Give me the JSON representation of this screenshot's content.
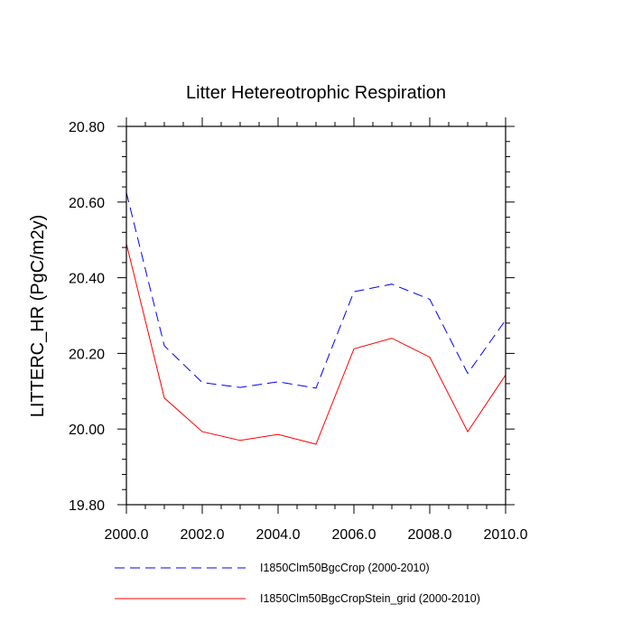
{
  "chart_data": {
    "type": "line",
    "title": "Litter Hetereotrophic Respiration",
    "xlabel": "",
    "ylabel": "LITTERC_HR  (PgC/m2y)",
    "xlim": [
      2000,
      2010
    ],
    "ylim": [
      19.8,
      20.8
    ],
    "x_ticks": [
      2000,
      2002,
      2004,
      2006,
      2008,
      2010
    ],
    "x_tick_labels": [
      "2000.0",
      "2002.0",
      "2004.0",
      "2006.0",
      "2008.0",
      "2010.0"
    ],
    "y_ticks": [
      19.8,
      20.0,
      20.2,
      20.4,
      20.6,
      20.8
    ],
    "y_tick_labels": [
      "19.80",
      "20.00",
      "20.20",
      "20.40",
      "20.60",
      "20.80"
    ],
    "grid": false,
    "legend": "bottom",
    "x": [
      2000,
      2001,
      2002,
      2003,
      2004,
      2005,
      2006,
      2007,
      2008,
      2009,
      2010
    ],
    "series": [
      {
        "name": "I1850Clm50BgcCrop (2000-2010)",
        "color": "#0000ff",
        "dash": "dashed",
        "values": [
          20.625,
          20.22,
          20.123,
          20.11,
          20.125,
          20.108,
          20.363,
          20.383,
          20.343,
          20.147,
          20.288
        ]
      },
      {
        "name": "I1850Clm50BgcCropStein_grid (2000-2010)",
        "color": "#ff0000",
        "dash": "solid",
        "values": [
          20.49,
          20.082,
          19.993,
          19.97,
          19.986,
          19.96,
          20.212,
          20.24,
          20.19,
          19.993,
          20.143
        ]
      }
    ]
  }
}
